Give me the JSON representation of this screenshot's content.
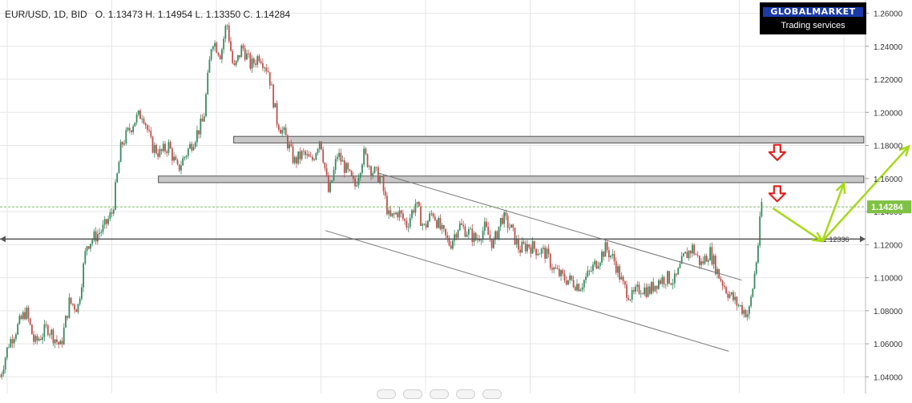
{
  "header": {
    "symbol": "EUR/USD, 1D, BID",
    "ohlc": "O. 1.13473 H. 1.14954 L. 1.13350 C. 1.14284"
  },
  "logo": {
    "brand": "GLOBALMARKET",
    "tagline": "Trading services"
  },
  "chart_data": {
    "type": "candlestick",
    "symbol": "EUR/USD",
    "timeframe": "1D",
    "price_type": "BID",
    "open": 1.13473,
    "high": 1.14954,
    "low": 1.1335,
    "close": 1.14284,
    "current_price_label": "1.14284",
    "y_axis": {
      "ticks": [
        "1.26000",
        "1.24000",
        "1.22000",
        "1.20000",
        "1.18000",
        "1.16000",
        "1.14000",
        "1.12000",
        "1.10000",
        "1.08000",
        "1.06000",
        "1.04000"
      ],
      "range": [
        1.03,
        1.268
      ],
      "position": "right"
    },
    "horizontal_line": {
      "value": 1.12336,
      "label": "1.12336"
    },
    "resistance_zones": [
      {
        "low": 1.1815,
        "high": 1.1855
      },
      {
        "low": 1.1575,
        "high": 1.1615
      }
    ],
    "channel": {
      "upper": [
        [
          0.436,
          1.1635
        ],
        [
          0.857,
          1.0985
        ]
      ],
      "lower": [
        [
          0.376,
          1.1285
        ],
        [
          0.842,
          1.0555
        ]
      ]
    },
    "price_path": [
      [
        0.0,
        1.04
      ],
      [
        0.01,
        1.06
      ],
      [
        0.03,
        1.08
      ],
      [
        0.04,
        1.06
      ],
      [
        0.055,
        1.07
      ],
      [
        0.07,
        1.058
      ],
      [
        0.08,
        1.085
      ],
      [
        0.09,
        1.082
      ],
      [
        0.1,
        1.12
      ],
      [
        0.11,
        1.125
      ],
      [
        0.12,
        1.13
      ],
      [
        0.13,
        1.14
      ],
      [
        0.14,
        1.18
      ],
      [
        0.155,
        1.195
      ],
      [
        0.165,
        1.2
      ],
      [
        0.175,
        1.18
      ],
      [
        0.185,
        1.175
      ],
      [
        0.195,
        1.18
      ],
      [
        0.205,
        1.165
      ],
      [
        0.215,
        1.175
      ],
      [
        0.225,
        1.185
      ],
      [
        0.235,
        1.195
      ],
      [
        0.245,
        1.245
      ],
      [
        0.255,
        1.235
      ],
      [
        0.262,
        1.255
      ],
      [
        0.27,
        1.225
      ],
      [
        0.28,
        1.24
      ],
      [
        0.29,
        1.228
      ],
      [
        0.3,
        1.235
      ],
      [
        0.31,
        1.225
      ],
      [
        0.32,
        1.195
      ],
      [
        0.33,
        1.185
      ],
      [
        0.34,
        1.17
      ],
      [
        0.35,
        1.175
      ],
      [
        0.36,
        1.17
      ],
      [
        0.37,
        1.185
      ],
      [
        0.38,
        1.15
      ],
      [
        0.39,
        1.175
      ],
      [
        0.4,
        1.165
      ],
      [
        0.41,
        1.155
      ],
      [
        0.42,
        1.175
      ],
      [
        0.43,
        1.165
      ],
      [
        0.44,
        1.16
      ],
      [
        0.45,
        1.135
      ],
      [
        0.46,
        1.14
      ],
      [
        0.47,
        1.132
      ],
      [
        0.48,
        1.145
      ],
      [
        0.49,
        1.13
      ],
      [
        0.5,
        1.14
      ],
      [
        0.51,
        1.128
      ],
      [
        0.52,
        1.12
      ],
      [
        0.53,
        1.132
      ],
      [
        0.54,
        1.128
      ],
      [
        0.55,
        1.123
      ],
      [
        0.56,
        1.13
      ],
      [
        0.57,
        1.12
      ],
      [
        0.58,
        1.137
      ],
      [
        0.59,
        1.13
      ],
      [
        0.6,
        1.117
      ],
      [
        0.61,
        1.12
      ],
      [
        0.62,
        1.117
      ],
      [
        0.63,
        1.115
      ],
      [
        0.64,
        1.105
      ],
      [
        0.65,
        1.1
      ],
      [
        0.66,
        1.098
      ],
      [
        0.67,
        1.095
      ],
      [
        0.68,
        1.102
      ],
      [
        0.69,
        1.11
      ],
      [
        0.7,
        1.118
      ],
      [
        0.71,
        1.11
      ],
      [
        0.72,
        1.095
      ],
      [
        0.73,
        1.088
      ],
      [
        0.74,
        1.094
      ],
      [
        0.75,
        1.092
      ],
      [
        0.76,
        1.098
      ],
      [
        0.77,
        1.1
      ],
      [
        0.78,
        1.098
      ],
      [
        0.79,
        1.112
      ],
      [
        0.8,
        1.118
      ],
      [
        0.81,
        1.108
      ],
      [
        0.82,
        1.116
      ],
      [
        0.83,
        1.102
      ],
      [
        0.84,
        1.092
      ],
      [
        0.85,
        1.085
      ],
      [
        0.86,
        1.08
      ],
      [
        0.865,
        1.078
      ],
      [
        0.87,
        1.095
      ],
      [
        0.875,
        1.115
      ],
      [
        0.88,
        1.145
      ]
    ],
    "forecast_arrows": [
      {
        "from": [
          0.893,
          1.142
        ],
        "to": [
          0.95,
          1.122
        ]
      },
      {
        "from": [
          0.95,
          1.122
        ],
        "to": [
          0.975,
          1.157
        ]
      },
      {
        "from": [
          0.95,
          1.122
        ],
        "to": [
          1.05,
          1.1795
        ]
      }
    ],
    "down_arrows": [
      {
        "x": 0.898,
        "y": 1.1755
      },
      {
        "x": 0.898,
        "y": 1.1505
      }
    ],
    "colors": {
      "up_candle": "#3a8a5f",
      "down_candle": "#c0504d",
      "zone_fill": "#c8c8c8",
      "forecast": "#a6d91a",
      "down_arrow": "#e02020",
      "price_badge": "#7ec143",
      "grid": "#e6e6e6"
    }
  }
}
